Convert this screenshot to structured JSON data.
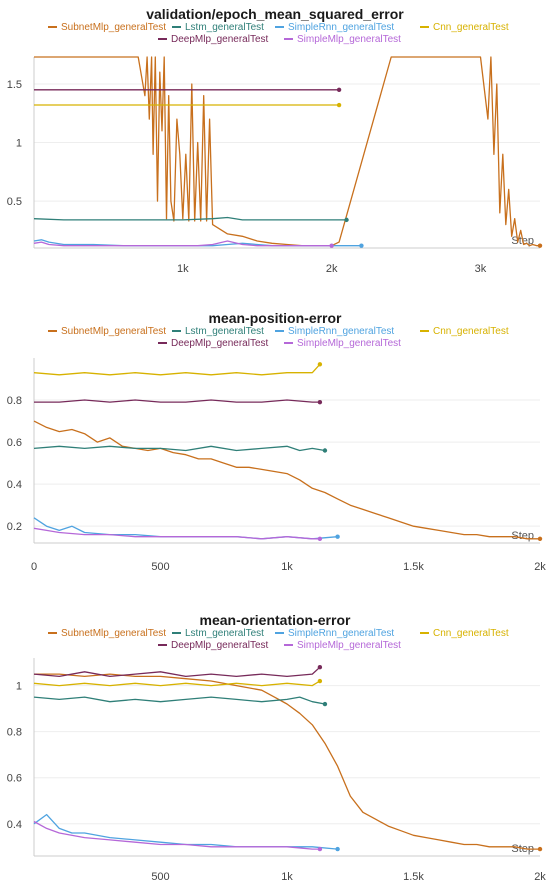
{
  "chart_data": [
    {
      "type": "line",
      "title": "validation/epoch_mean_squared_error",
      "xlabel": "Step",
      "xlim": [
        0,
        3400
      ],
      "ylim": [
        0.1,
        1.73
      ],
      "x_ticks": [
        1000,
        2000,
        3000
      ],
      "x_tick_labels": [
        "1k",
        "2k",
        "3k"
      ],
      "y_ticks": [
        0.5,
        1,
        1.5
      ],
      "y_tick_labels": [
        "0.5",
        "1",
        "1.5"
      ],
      "legend": "top",
      "series": [
        {
          "name": "SubnetMlp_generalTest",
          "color": "#c8701d",
          "x": [
            0,
            700,
            745,
            760,
            775,
            790,
            800,
            815,
            830,
            845,
            860,
            875,
            890,
            905,
            920,
            940,
            960,
            980,
            1000,
            1020,
            1040,
            1060,
            1080,
            1100,
            1120,
            1140,
            1160,
            1180,
            1200,
            1300,
            1400,
            1500,
            1600,
            1700,
            1800,
            1900,
            2000,
            2050,
            2400,
            3000,
            3050,
            3070,
            3090,
            3110,
            3130,
            3150,
            3170,
            3190,
            3210,
            3230,
            3250,
            3270,
            3290,
            3310,
            3330,
            3350,
            3380,
            3400
          ],
          "y": [
            1.73,
            1.73,
            1.4,
            1.73,
            1.2,
            1.73,
            0.9,
            1.73,
            0.5,
            1.6,
            1.1,
            1.73,
            0.35,
            1.4,
            0.5,
            0.33,
            1.2,
            0.9,
            0.35,
            0.9,
            0.33,
            1.5,
            0.33,
            1.0,
            0.33,
            1.4,
            0.33,
            1.2,
            0.3,
            0.22,
            0.2,
            0.16,
            0.14,
            0.13,
            0.12,
            0.12,
            0.12,
            0.15,
            1.73,
            1.73,
            1.2,
            1.73,
            0.9,
            1.5,
            0.4,
            0.9,
            0.3,
            0.6,
            0.2,
            0.35,
            0.15,
            0.25,
            0.13,
            0.14,
            0.12,
            0.13,
            0.12,
            0.12
          ]
        },
        {
          "name": "Lstm_generalTest",
          "color": "#2f7f78",
          "x": [
            0,
            200,
            400,
            600,
            800,
            1000,
            1200,
            1300,
            1400,
            1600,
            1800,
            2000,
            2100
          ],
          "y": [
            0.35,
            0.34,
            0.34,
            0.34,
            0.34,
            0.34,
            0.35,
            0.36,
            0.34,
            0.34,
            0.34,
            0.34,
            0.34
          ]
        },
        {
          "name": "SimpleRnn_generalTest",
          "color": "#4fa3e0",
          "x": [
            0,
            50,
            100,
            200,
            400,
            600,
            800,
            1000,
            1200,
            1300,
            1400,
            1500,
            1600,
            1800,
            2000,
            2200
          ],
          "y": [
            0.16,
            0.17,
            0.15,
            0.13,
            0.13,
            0.12,
            0.12,
            0.12,
            0.12,
            0.13,
            0.14,
            0.13,
            0.12,
            0.12,
            0.12,
            0.12
          ]
        },
        {
          "name": "Cnn_generalTest",
          "color": "#d7b200",
          "x": [
            0,
            300,
            600,
            900,
            1200,
            1500,
            1800,
            2050
          ],
          "y": [
            1.32,
            1.32,
            1.32,
            1.32,
            1.32,
            1.32,
            1.32,
            1.32
          ]
        },
        {
          "name": "DeepMlp_generalTest",
          "color": "#772a5a",
          "x": [
            0,
            300,
            600,
            900,
            1200,
            1500,
            1800,
            2050
          ],
          "y": [
            1.45,
            1.45,
            1.45,
            1.45,
            1.45,
            1.45,
            1.45,
            1.45
          ]
        },
        {
          "name": "SimpleMlp_generalTest",
          "color": "#b568d8",
          "x": [
            0,
            50,
            100,
            200,
            400,
            600,
            800,
            1000,
            1100,
            1200,
            1300,
            1400,
            1500,
            1600,
            1800,
            2000
          ],
          "y": [
            0.14,
            0.15,
            0.13,
            0.12,
            0.12,
            0.12,
            0.12,
            0.12,
            0.12,
            0.13,
            0.16,
            0.13,
            0.12,
            0.12,
            0.12,
            0.12
          ]
        }
      ]
    },
    {
      "type": "line",
      "title": "mean-position-error",
      "xlabel": "Step",
      "xlim": [
        0,
        2000
      ],
      "ylim": [
        0.12,
        1.0
      ],
      "x_ticks": [
        0,
        500,
        1000,
        1500,
        2000
      ],
      "x_tick_labels": [
        "0",
        "500",
        "1k",
        "1.5k",
        "2k"
      ],
      "y_ticks": [
        0.2,
        0.4,
        0.6,
        0.8
      ],
      "y_tick_labels": [
        "0.2",
        "0.4",
        "0.6",
        "0.8"
      ],
      "legend": "top",
      "series": [
        {
          "name": "SubnetMlp_generalTest",
          "color": "#c8701d",
          "x": [
            0,
            50,
            100,
            150,
            200,
            250,
            300,
            350,
            400,
            450,
            500,
            550,
            600,
            650,
            700,
            750,
            800,
            850,
            900,
            950,
            1000,
            1050,
            1100,
            1150,
            1200,
            1250,
            1300,
            1350,
            1400,
            1450,
            1500,
            1550,
            1600,
            1650,
            1700,
            1750,
            1800,
            1850,
            1900,
            1950,
            2000
          ],
          "y": [
            0.7,
            0.67,
            0.65,
            0.66,
            0.64,
            0.6,
            0.62,
            0.58,
            0.57,
            0.56,
            0.57,
            0.55,
            0.54,
            0.52,
            0.52,
            0.5,
            0.48,
            0.48,
            0.47,
            0.46,
            0.45,
            0.42,
            0.38,
            0.36,
            0.33,
            0.3,
            0.28,
            0.26,
            0.24,
            0.22,
            0.2,
            0.19,
            0.18,
            0.17,
            0.16,
            0.16,
            0.15,
            0.15,
            0.15,
            0.14,
            0.14
          ]
        },
        {
          "name": "Lstm_generalTest",
          "color": "#2f7f78",
          "x": [
            0,
            100,
            200,
            300,
            400,
            500,
            600,
            700,
            800,
            900,
            1000,
            1050,
            1100,
            1150
          ],
          "y": [
            0.57,
            0.58,
            0.57,
            0.58,
            0.57,
            0.57,
            0.56,
            0.58,
            0.56,
            0.57,
            0.58,
            0.56,
            0.57,
            0.56
          ]
        },
        {
          "name": "SimpleRnn_generalTest",
          "color": "#4fa3e0",
          "x": [
            0,
            50,
            100,
            150,
            200,
            300,
            400,
            500,
            600,
            700,
            800,
            900,
            1000,
            1100,
            1200
          ],
          "y": [
            0.24,
            0.2,
            0.18,
            0.2,
            0.17,
            0.16,
            0.16,
            0.15,
            0.15,
            0.15,
            0.15,
            0.14,
            0.15,
            0.14,
            0.15
          ]
        },
        {
          "name": "Cnn_generalTest",
          "color": "#d7b200",
          "x": [
            0,
            100,
            200,
            300,
            400,
            500,
            600,
            700,
            800,
            900,
            1000,
            1100,
            1130
          ],
          "y": [
            0.93,
            0.92,
            0.93,
            0.92,
            0.93,
            0.92,
            0.93,
            0.92,
            0.93,
            0.92,
            0.93,
            0.93,
            0.97
          ]
        },
        {
          "name": "DeepMlp_generalTest",
          "color": "#772a5a",
          "x": [
            0,
            100,
            200,
            300,
            400,
            500,
            600,
            700,
            800,
            900,
            1000,
            1100,
            1130
          ],
          "y": [
            0.79,
            0.79,
            0.8,
            0.79,
            0.8,
            0.79,
            0.79,
            0.8,
            0.79,
            0.79,
            0.8,
            0.79,
            0.79
          ]
        },
        {
          "name": "SimpleMlp_generalTest",
          "color": "#b568d8",
          "x": [
            0,
            50,
            100,
            200,
            300,
            400,
            500,
            600,
            700,
            800,
            900,
            1000,
            1100,
            1130
          ],
          "y": [
            0.19,
            0.18,
            0.17,
            0.16,
            0.16,
            0.15,
            0.15,
            0.15,
            0.15,
            0.15,
            0.14,
            0.15,
            0.14,
            0.14
          ]
        }
      ]
    },
    {
      "type": "line",
      "title": "mean-orientation-error",
      "xlabel": "Step",
      "xlim": [
        0,
        2000
      ],
      "ylim": [
        0.26,
        1.12
      ],
      "x_ticks": [
        500,
        1000,
        1500,
        2000
      ],
      "x_tick_labels": [
        "500",
        "1k",
        "1.5k",
        "2k"
      ],
      "y_ticks": [
        0.4,
        0.6,
        0.8,
        1
      ],
      "y_tick_labels": [
        "0.4",
        "0.6",
        "0.8",
        "1"
      ],
      "legend": "top",
      "series": [
        {
          "name": "SubnetMlp_generalTest",
          "color": "#c8701d",
          "x": [
            0,
            100,
            200,
            300,
            400,
            500,
            600,
            700,
            800,
            900,
            950,
            1000,
            1050,
            1100,
            1150,
            1200,
            1250,
            1300,
            1350,
            1400,
            1450,
            1500,
            1550,
            1600,
            1650,
            1700,
            1750,
            1800,
            1850,
            1900,
            1950,
            2000
          ],
          "y": [
            1.05,
            1.05,
            1.04,
            1.05,
            1.04,
            1.04,
            1.03,
            1.02,
            1.0,
            0.98,
            0.95,
            0.92,
            0.88,
            0.83,
            0.75,
            0.65,
            0.52,
            0.45,
            0.42,
            0.39,
            0.37,
            0.35,
            0.34,
            0.33,
            0.32,
            0.31,
            0.31,
            0.3,
            0.3,
            0.3,
            0.29,
            0.29
          ]
        },
        {
          "name": "Lstm_generalTest",
          "color": "#2f7f78",
          "x": [
            0,
            100,
            200,
            300,
            400,
            500,
            600,
            700,
            800,
            900,
            1000,
            1050,
            1100,
            1150
          ],
          "y": [
            0.95,
            0.94,
            0.95,
            0.93,
            0.94,
            0.93,
            0.94,
            0.95,
            0.94,
            0.93,
            0.94,
            0.95,
            0.93,
            0.92
          ]
        },
        {
          "name": "SimpleRnn_generalTest",
          "color": "#4fa3e0",
          "x": [
            0,
            50,
            100,
            150,
            200,
            300,
            400,
            500,
            600,
            700,
            800,
            900,
            1000,
            1100,
            1200
          ],
          "y": [
            0.4,
            0.44,
            0.38,
            0.36,
            0.36,
            0.34,
            0.33,
            0.32,
            0.31,
            0.31,
            0.3,
            0.3,
            0.3,
            0.3,
            0.29
          ]
        },
        {
          "name": "Cnn_generalTest",
          "color": "#d7b200",
          "x": [
            0,
            100,
            200,
            300,
            400,
            500,
            600,
            700,
            800,
            900,
            1000,
            1100,
            1130
          ],
          "y": [
            1.01,
            1.0,
            1.01,
            1.0,
            1.01,
            1.0,
            1.01,
            1.0,
            1.01,
            1.0,
            1.01,
            1.0,
            1.02
          ]
        },
        {
          "name": "DeepMlp_generalTest",
          "color": "#772a5a",
          "x": [
            0,
            100,
            200,
            300,
            400,
            500,
            600,
            700,
            800,
            900,
            1000,
            1100,
            1130
          ],
          "y": [
            1.05,
            1.04,
            1.06,
            1.04,
            1.05,
            1.06,
            1.04,
            1.05,
            1.04,
            1.05,
            1.04,
            1.05,
            1.08
          ]
        },
        {
          "name": "SimpleMlp_generalTest",
          "color": "#b568d8",
          "x": [
            0,
            50,
            100,
            200,
            300,
            400,
            500,
            600,
            700,
            800,
            900,
            1000,
            1100,
            1130
          ],
          "y": [
            0.41,
            0.38,
            0.36,
            0.34,
            0.33,
            0.32,
            0.31,
            0.31,
            0.3,
            0.3,
            0.3,
            0.3,
            0.29,
            0.29
          ]
        }
      ]
    }
  ]
}
